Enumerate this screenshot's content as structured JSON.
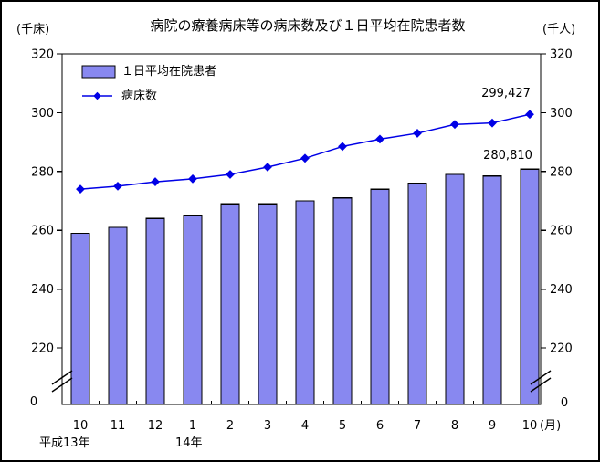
{
  "title": "病院の療養病床等の病床数及び１日平均在院患者数",
  "axis_unit_left": "(千床)",
  "axis_unit_right": "(千人)",
  "legend": {
    "bars": "１日平均在院患者",
    "line": "病床数"
  },
  "annotations": {
    "line_last": "299,427",
    "bar_last": "280,810"
  },
  "x_axis": {
    "unit": "(月)",
    "era_left": "平成13年",
    "era_mid": "14年"
  },
  "colors": {
    "bar_fill": "#8888f0",
    "bar_stroke": "#000000",
    "line": "#0000e6",
    "axis": "#000000"
  },
  "chart_data": {
    "type": "bar+line combo",
    "title": "病院の療養病床等の病床数及び１日平均在院患者数",
    "categories": [
      "10",
      "11",
      "12",
      "1",
      "2",
      "3",
      "4",
      "5",
      "6",
      "7",
      "8",
      "9",
      "10"
    ],
    "category_unit": "月",
    "era_labels": [
      "平成13年",
      "14年"
    ],
    "series": [
      {
        "name": "１日平均在院患者",
        "type": "bar",
        "unit": "千人",
        "values": [
          259,
          261,
          264,
          265,
          269,
          269,
          270,
          271,
          274,
          276,
          279,
          278.5,
          280.81
        ],
        "last_value_label": "280,810"
      },
      {
        "name": "病床数",
        "type": "line",
        "marker": "diamond",
        "unit": "千床",
        "values": [
          274,
          275,
          276.5,
          277.5,
          279,
          281.5,
          284.5,
          288.5,
          291,
          293,
          296,
          296.5,
          299.43
        ],
        "last_value_label": "299,427"
      }
    ],
    "y_ticks": [
      320,
      300,
      280,
      260,
      240,
      220
    ],
    "y_zero_label": "0",
    "axis_break_above_zero": true,
    "ylim_display": [
      220,
      320
    ],
    "dual_axis_same_scale": true,
    "grid": false,
    "legend_position": "top-left-inside"
  }
}
